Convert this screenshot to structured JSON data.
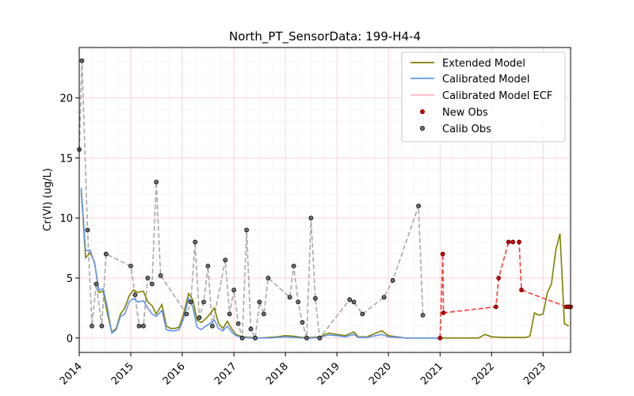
{
  "chart_data": {
    "type": "line",
    "title": "North_PT_SensorData: 199-H4-4",
    "xlabel": "",
    "ylabel": "Cr(VI) (ug/L)",
    "xlim": [
      "2014-01-01",
      "2023-07-15"
    ],
    "ylim": [
      -1.2,
      24.2
    ],
    "x_ticks": [
      "2014",
      "2015",
      "2016",
      "2017",
      "2018",
      "2019",
      "2020",
      "2021",
      "2022",
      "2023"
    ],
    "y_ticks": [
      0,
      5,
      10,
      15,
      20
    ],
    "grid": true,
    "legend": "top-right",
    "colors": {
      "extended": "#808000",
      "calibrated": "#6495ed",
      "ecf": "#ffb6c1",
      "new_obs": "#d00000",
      "calib_obs": "#505050",
      "calib_line": "#a9a9a9",
      "new_line": "#ff3b3b",
      "grid_major": "#ffcccc",
      "grid_minor": "#eeeeee"
    },
    "series": [
      {
        "name": "Extended Model",
        "kind": "line",
        "points": [
          [
            "2014-01-15",
            12.3
          ],
          [
            "2014-02-15",
            6.7
          ],
          [
            "2014-03-20",
            7.1
          ],
          [
            "2014-04-20",
            6.3
          ],
          [
            "2014-05-20",
            3.8
          ],
          [
            "2014-06-20",
            3.9
          ],
          [
            "2014-07-20",
            2.0
          ],
          [
            "2014-08-20",
            0.5
          ],
          [
            "2014-09-20",
            0.8
          ],
          [
            "2014-10-20",
            2.0
          ],
          [
            "2014-11-20",
            2.5
          ],
          [
            "2014-12-20",
            3.5
          ],
          [
            "2015-01-20",
            4.0
          ],
          [
            "2015-02-20",
            3.8
          ],
          [
            "2015-04-01",
            3.9
          ],
          [
            "2015-05-01",
            3.0
          ],
          [
            "2015-06-01",
            2.7
          ],
          [
            "2015-07-01",
            2.0
          ],
          [
            "2015-08-10",
            2.8
          ],
          [
            "2015-09-10",
            1.0
          ],
          [
            "2015-10-10",
            0.8
          ],
          [
            "2015-11-10",
            0.8
          ],
          [
            "2015-12-10",
            0.9
          ],
          [
            "2016-01-10",
            2.0
          ],
          [
            "2016-02-15",
            3.7
          ],
          [
            "2016-03-15",
            3.2
          ],
          [
            "2016-04-15",
            1.5
          ],
          [
            "2016-05-15",
            1.3
          ],
          [
            "2016-06-15",
            1.6
          ],
          [
            "2016-07-15",
            2.0
          ],
          [
            "2016-08-15",
            2.5
          ],
          [
            "2016-09-15",
            1.2
          ],
          [
            "2016-10-15",
            0.8
          ],
          [
            "2016-11-15",
            1.4
          ],
          [
            "2016-12-15",
            0.8
          ],
          [
            "2017-01-15",
            0.3
          ],
          [
            "2017-03-01",
            0.1
          ],
          [
            "2017-05-01",
            0.05
          ],
          [
            "2017-07-01",
            0.0
          ],
          [
            "2017-09-01",
            0.05
          ],
          [
            "2017-11-01",
            0.1
          ],
          [
            "2018-01-01",
            0.2
          ],
          [
            "2018-03-01",
            0.15
          ],
          [
            "2018-05-01",
            0.05
          ],
          [
            "2018-07-01",
            0.05
          ],
          [
            "2018-09-01",
            0.1
          ],
          [
            "2018-11-01",
            0.4
          ],
          [
            "2019-01-01",
            0.3
          ],
          [
            "2019-03-01",
            0.2
          ],
          [
            "2019-05-01",
            0.5
          ],
          [
            "2019-06-01",
            0.1
          ],
          [
            "2019-08-01",
            0.1
          ],
          [
            "2019-10-01",
            0.4
          ],
          [
            "2019-11-15",
            0.6
          ],
          [
            "2020-01-01",
            0.2
          ],
          [
            "2020-03-01",
            0.1
          ],
          [
            "2020-05-01",
            0.0
          ],
          [
            "2020-09-01",
            0.0
          ],
          [
            "2021-01-01",
            0.0
          ],
          [
            "2021-04-01",
            0.0
          ],
          [
            "2021-07-01",
            0.0
          ],
          [
            "2021-10-01",
            0.0
          ],
          [
            "2021-11-15",
            0.3
          ],
          [
            "2022-01-01",
            0.1
          ],
          [
            "2022-04-01",
            0.05
          ],
          [
            "2022-07-01",
            0.05
          ],
          [
            "2022-09-01",
            0.05
          ],
          [
            "2022-10-01",
            0.2
          ],
          [
            "2022-11-01",
            2.1
          ],
          [
            "2022-12-01",
            1.9
          ],
          [
            "2023-01-01",
            2.0
          ],
          [
            "2023-02-01",
            3.8
          ],
          [
            "2023-03-01",
            4.5
          ],
          [
            "2023-04-01",
            7.3
          ],
          [
            "2023-05-01",
            8.7
          ],
          [
            "2023-06-01",
            1.2
          ],
          [
            "2023-07-01",
            1.0
          ]
        ]
      },
      {
        "name": "Calibrated Model",
        "kind": "line",
        "points": [
          [
            "2014-01-15",
            12.5
          ],
          [
            "2014-02-15",
            7.3
          ],
          [
            "2014-03-20",
            7.3
          ],
          [
            "2014-04-20",
            6.2
          ],
          [
            "2014-05-20",
            4.0
          ],
          [
            "2014-06-20",
            4.1
          ],
          [
            "2014-07-20",
            2.5
          ],
          [
            "2014-08-20",
            0.4
          ],
          [
            "2014-09-20",
            0.7
          ],
          [
            "2014-10-20",
            1.8
          ],
          [
            "2014-11-20",
            2.0
          ],
          [
            "2014-12-20",
            3.0
          ],
          [
            "2015-01-20",
            3.3
          ],
          [
            "2015-02-20",
            3.0
          ],
          [
            "2015-04-01",
            3.1
          ],
          [
            "2015-05-01",
            2.5
          ],
          [
            "2015-06-01",
            2.0
          ],
          [
            "2015-07-01",
            1.8
          ],
          [
            "2015-08-10",
            2.3
          ],
          [
            "2015-09-10",
            0.7
          ],
          [
            "2015-10-10",
            0.6
          ],
          [
            "2015-11-10",
            0.6
          ],
          [
            "2015-12-10",
            0.7
          ],
          [
            "2016-01-10",
            1.6
          ],
          [
            "2016-02-15",
            3.3
          ],
          [
            "2016-03-15",
            2.6
          ],
          [
            "2016-04-15",
            0.9
          ],
          [
            "2016-05-15",
            0.7
          ],
          [
            "2016-06-15",
            1.0
          ],
          [
            "2016-07-15",
            1.2
          ],
          [
            "2016-08-15",
            1.5
          ],
          [
            "2016-09-15",
            0.8
          ],
          [
            "2016-10-15",
            0.6
          ],
          [
            "2016-11-15",
            1.0
          ],
          [
            "2016-12-15",
            0.5
          ],
          [
            "2017-01-15",
            0.2
          ],
          [
            "2017-03-01",
            0.05
          ],
          [
            "2017-05-01",
            0.0
          ],
          [
            "2017-07-01",
            0.0
          ],
          [
            "2017-09-01",
            0.0
          ],
          [
            "2017-11-01",
            0.05
          ],
          [
            "2018-01-01",
            0.1
          ],
          [
            "2018-03-01",
            0.05
          ],
          [
            "2018-05-01",
            0.0
          ],
          [
            "2018-07-01",
            0.0
          ],
          [
            "2018-09-01",
            0.05
          ],
          [
            "2018-11-01",
            0.25
          ],
          [
            "2019-01-01",
            0.2
          ],
          [
            "2019-03-01",
            0.1
          ],
          [
            "2019-05-01",
            0.3
          ],
          [
            "2019-06-01",
            0.05
          ],
          [
            "2019-08-01",
            0.05
          ],
          [
            "2019-10-01",
            0.2
          ],
          [
            "2019-11-15",
            0.3
          ],
          [
            "2020-01-01",
            0.1
          ],
          [
            "2020-03-01",
            0.05
          ],
          [
            "2020-05-01",
            0.0
          ],
          [
            "2020-09-01",
            0.0
          ],
          [
            "2021-01-01",
            0.0
          ]
        ]
      },
      {
        "name": "Calibrated Model ECF",
        "kind": "line",
        "points": []
      },
      {
        "name": "New Obs",
        "kind": "scatter",
        "points": [
          [
            "2021-01-01",
            0.0
          ],
          [
            "2021-01-20",
            7.0
          ],
          [
            "2021-01-25",
            2.1
          ],
          [
            "2022-02-01",
            2.6
          ],
          [
            "2022-02-20",
            5.0
          ],
          [
            "2022-05-01",
            8.0
          ],
          [
            "2022-06-01",
            8.0
          ],
          [
            "2022-07-15",
            8.0
          ],
          [
            "2022-08-01",
            4.0
          ],
          [
            "2023-06-15",
            2.6
          ],
          [
            "2023-07-01",
            2.6
          ],
          [
            "2023-07-15",
            2.6
          ]
        ]
      },
      {
        "name": "Calib Obs",
        "kind": "scatter",
        "points": [
          [
            "2014-01-01",
            15.7
          ],
          [
            "2014-01-20",
            23.1
          ],
          [
            "2014-03-01",
            9.0
          ],
          [
            "2014-04-01",
            1.0
          ],
          [
            "2014-05-01",
            4.5
          ],
          [
            "2014-06-10",
            1.0
          ],
          [
            "2014-07-10",
            7.0
          ],
          [
            "2015-01-01",
            6.0
          ],
          [
            "2015-02-01",
            3.6
          ],
          [
            "2015-03-01",
            1.0
          ],
          [
            "2015-04-01",
            1.0
          ],
          [
            "2015-05-01",
            5.0
          ],
          [
            "2015-06-01",
            4.5
          ],
          [
            "2015-07-01",
            13.0
          ],
          [
            "2015-08-01",
            5.2
          ],
          [
            "2016-02-01",
            2.0
          ],
          [
            "2016-03-01",
            3.0
          ],
          [
            "2016-04-01",
            8.0
          ],
          [
            "2016-05-01",
            1.7
          ],
          [
            "2016-06-01",
            3.0
          ],
          [
            "2016-07-01",
            6.0
          ],
          [
            "2016-08-01",
            1.0
          ],
          [
            "2016-11-01",
            6.5
          ],
          [
            "2016-12-01",
            2.0
          ],
          [
            "2017-01-01",
            4.0
          ],
          [
            "2017-02-01",
            1.2
          ],
          [
            "2017-03-01",
            0.0
          ],
          [
            "2017-04-01",
            9.0
          ],
          [
            "2017-05-01",
            0.75
          ],
          [
            "2017-06-01",
            0.0
          ],
          [
            "2017-07-01",
            3.0
          ],
          [
            "2017-08-01",
            2.0
          ],
          [
            "2017-09-01",
            5.0
          ],
          [
            "2018-02-01",
            3.4
          ],
          [
            "2018-03-01",
            6.0
          ],
          [
            "2018-04-01",
            3.0
          ],
          [
            "2018-05-01",
            1.3
          ],
          [
            "2018-06-01",
            0.0
          ],
          [
            "2018-07-01",
            10.0
          ],
          [
            "2018-08-01",
            3.3
          ],
          [
            "2018-09-01",
            0.0
          ],
          [
            "2019-04-01",
            3.2
          ],
          [
            "2019-05-01",
            3.0
          ],
          [
            "2019-07-01",
            2.0
          ],
          [
            "2019-12-01",
            3.4
          ],
          [
            "2020-02-01",
            4.8
          ],
          [
            "2020-08-01",
            11.0
          ],
          [
            "2020-09-01",
            1.9
          ]
        ]
      }
    ],
    "legend_entries": [
      "Extended Model",
      "Calibrated Model",
      "Calibrated Model ECF",
      "New Obs",
      "Calib Obs"
    ]
  }
}
